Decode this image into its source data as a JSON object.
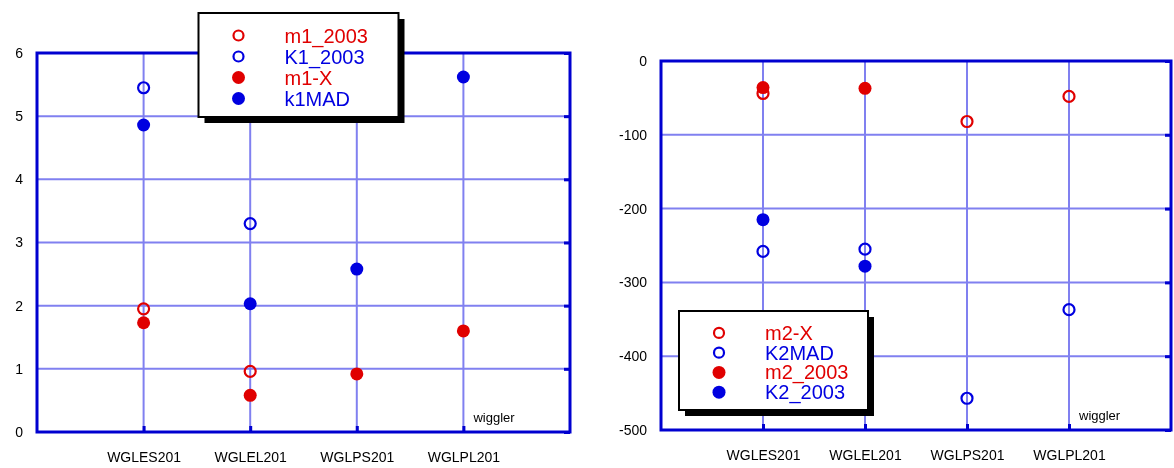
{
  "chart_data": [
    {
      "type": "scatter",
      "categories": [
        "WGLES201",
        "WGLEL201",
        "WGLPS201",
        "WGLPL201"
      ],
      "ylim": [
        0,
        6
      ],
      "yticks": [
        0,
        1,
        2,
        3,
        4,
        5,
        6
      ],
      "grid": true,
      "legend": "top",
      "annotations": [
        "wiggler"
      ],
      "series": [
        {
          "name": "m1_2003",
          "color": "#e00000",
          "marker": "circle-open",
          "values": [
            1.95,
            0.96,
            null,
            null
          ]
        },
        {
          "name": "K1_2003",
          "color": "#0000e0",
          "marker": "circle-open",
          "values": [
            5.45,
            3.3,
            null,
            null
          ]
        },
        {
          "name": "m1-X",
          "color": "#e00000",
          "marker": "circle",
          "values": [
            1.73,
            0.58,
            0.92,
            1.6
          ]
        },
        {
          "name": "k1MAD",
          "color": "#0000e0",
          "marker": "circle",
          "values": [
            4.86,
            2.03,
            2.58,
            5.62
          ]
        }
      ]
    },
    {
      "type": "scatter",
      "categories": [
        "WGLES201",
        "WGLEL201",
        "WGLPS201",
        "WGLPL201"
      ],
      "ylim": [
        -500,
        0
      ],
      "yticks": [
        -500,
        -400,
        -300,
        -200,
        -100,
        0
      ],
      "grid": true,
      "legend": "bottom left",
      "annotations": [
        "wiggler"
      ],
      "series": [
        {
          "name": "m2-X",
          "color": "#e00000",
          "marker": "circle-open",
          "values": [
            -44,
            null,
            -82,
            -48
          ]
        },
        {
          "name": "K2MAD",
          "color": "#0000e0",
          "marker": "circle-open",
          "values": [
            -258,
            -255,
            -457,
            -337
          ]
        },
        {
          "name": "m2_2003",
          "color": "#e00000",
          "marker": "circle",
          "values": [
            -36,
            -37,
            null,
            null
          ]
        },
        {
          "name": "K2_2003",
          "color": "#0000e0",
          "marker": "circle",
          "values": [
            -215,
            -278,
            null,
            null
          ]
        }
      ]
    }
  ]
}
